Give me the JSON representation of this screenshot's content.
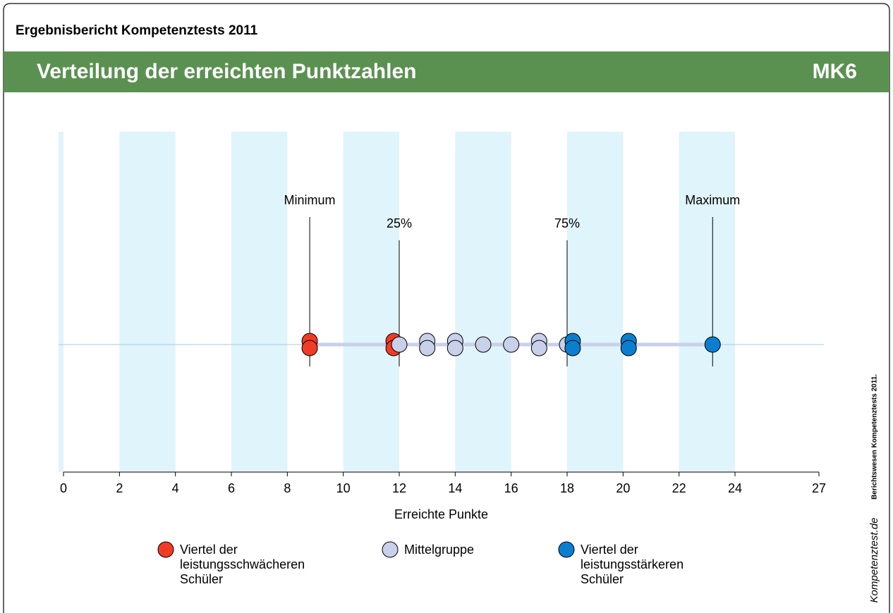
{
  "header": {
    "report_title": "Ergebnisbericht Kompetenztests 2011",
    "title": "Verteilung der erreichten Punktzahlen",
    "code": "MK6"
  },
  "chart_data": {
    "type": "dotplot",
    "x_label": "Erreichte Punkte",
    "xlim": [
      0,
      27
    ],
    "xticks": [
      0,
      2,
      4,
      6,
      8,
      10,
      12,
      14,
      16,
      18,
      20,
      22,
      24,
      27
    ],
    "shaded_bands": [
      [
        2,
        4
      ],
      [
        6,
        8
      ],
      [
        10,
        12
      ],
      [
        14,
        16
      ],
      [
        18,
        20
      ],
      [
        22,
        24
      ]
    ],
    "band_color": "#dff4fb",
    "reference_lines": [
      {
        "label": "Minimum",
        "value": 8.8
      },
      {
        "label": "25%",
        "value": 12
      },
      {
        "label": "75%",
        "value": 18
      },
      {
        "label": "Maximum",
        "value": 23.2
      }
    ],
    "series": [
      {
        "name": "Viertel der leistungsschwächeren Schüler",
        "color": "#f03c24",
        "values": [
          8.8,
          8.8,
          11.8,
          11.8
        ]
      },
      {
        "name": "Mittelgruppe",
        "color": "#c8d0ea",
        "values": [
          12,
          13,
          13,
          14,
          14,
          15,
          16,
          17,
          17,
          18
        ]
      },
      {
        "name": "Viertel der leistungsstärkeren Schüler",
        "color": "#0a7fd0",
        "values": [
          18.2,
          18.2,
          20.2,
          20.2,
          23.2
        ]
      }
    ]
  },
  "side_note": {
    "text": "Berichtswesen Kompetenztests 2011.",
    "logo": "Kompetenztest.de"
  }
}
